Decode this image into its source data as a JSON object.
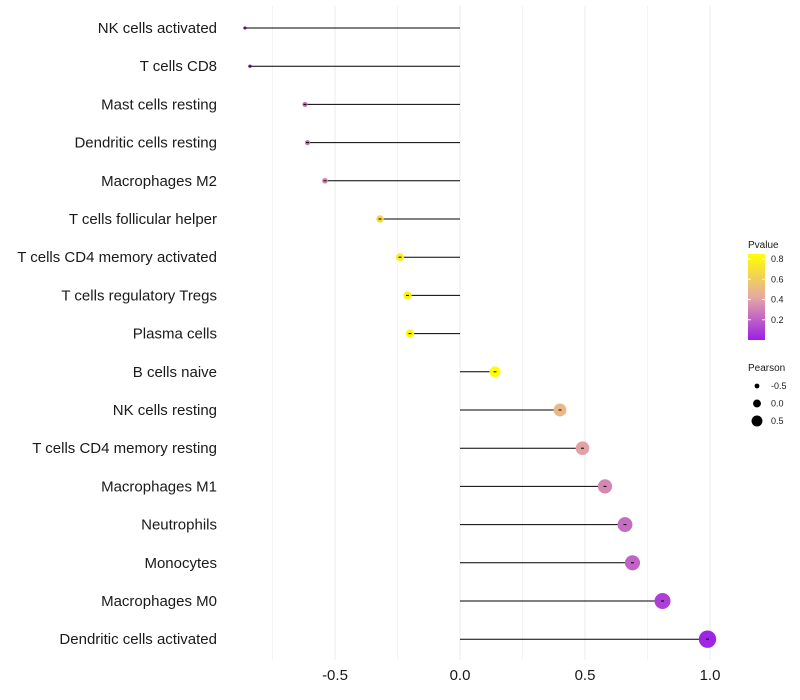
{
  "chart_data": {
    "type": "lollipop",
    "title": "",
    "xlabel": "",
    "ylabel": "",
    "xlim": [
      -0.87,
      1.02
    ],
    "x_ticks": [
      -0.5,
      0.0,
      0.5,
      1.0
    ],
    "x_tick_labels": [
      "-0.5",
      "0.0",
      "0.5",
      "1.0"
    ],
    "grid": true,
    "categories": [
      "NK cells activated",
      "T cells CD8",
      "Mast cells resting",
      "Dendritic cells resting",
      "Macrophages M2",
      "T cells follicular helper",
      "T cells CD4 memory activated",
      "T cells regulatory  Tregs ",
      "Plasma cells",
      "B cells naive",
      "NK cells resting",
      "T cells CD4 memory resting",
      "Macrophages M1",
      "Neutrophils",
      "Monocytes",
      "Macrophages M0",
      "Dendritic cells activated"
    ],
    "pearson": [
      -0.86,
      -0.84,
      -0.62,
      -0.61,
      -0.54,
      -0.32,
      -0.24,
      -0.21,
      -0.2,
      0.14,
      0.4,
      0.49,
      0.58,
      0.66,
      0.69,
      0.81,
      0.99
    ],
    "pvalue": [
      0.02,
      0.03,
      0.25,
      0.27,
      0.33,
      0.66,
      0.76,
      0.79,
      0.8,
      0.85,
      0.5,
      0.4,
      0.32,
      0.24,
      0.21,
      0.1,
      0.02
    ],
    "color_legend": {
      "title": "Pvalue",
      "ticks": [
        "0.8",
        "0.6",
        "0.4",
        "0.2"
      ],
      "tick_values": [
        0.8,
        0.6,
        0.4,
        0.2
      ],
      "range": [
        0.0,
        0.85
      ],
      "low_color": "#9b1fe8",
      "mid_color": "#e6a9a1",
      "high_color": "#ffff00"
    },
    "size_legend": {
      "title": "Pearson",
      "labels": [
        "-0.5",
        "0.0",
        "0.5"
      ],
      "values": [
        -0.5,
        0.0,
        0.5
      ]
    },
    "legend_position": "right"
  }
}
